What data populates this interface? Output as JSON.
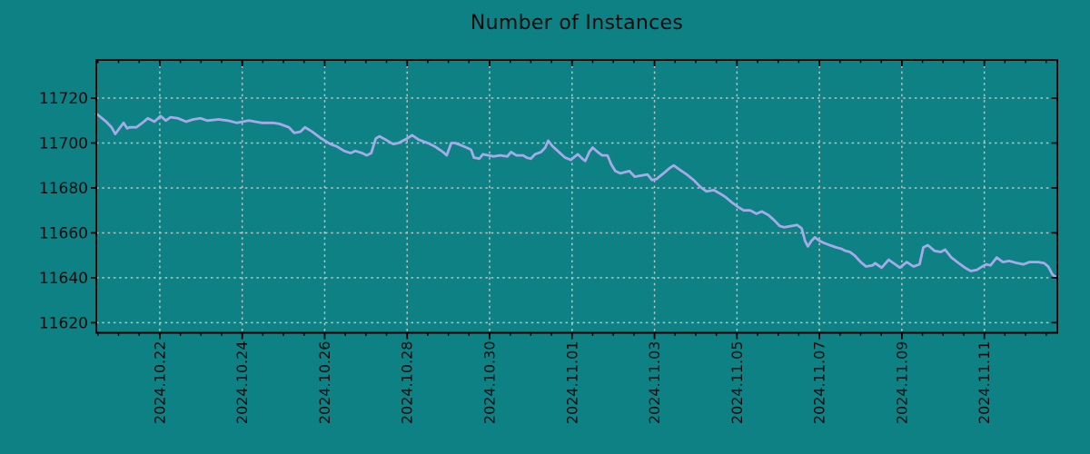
{
  "chart_data": {
    "type": "line",
    "title": "Number of Instances",
    "background_color": "#0e8185",
    "text_color": "#0b0b0b",
    "plot_border_color": "#000000",
    "grid": {
      "show": true,
      "style": "dashed",
      "color": "#bcc3c3"
    },
    "legend": "none",
    "x_axis": {
      "label": "",
      "unit": "days since 2024-10-20",
      "range_days": [
        0.46,
        23.77
      ],
      "minor_tick_interval_days": 0.5,
      "major_tick_interval_days": 2,
      "major_ticks": [
        {
          "t": 2,
          "label": "2024.10.22"
        },
        {
          "t": 4,
          "label": "2024.10.24"
        },
        {
          "t": 6,
          "label": "2024.10.26"
        },
        {
          "t": 8,
          "label": "2024.10.28"
        },
        {
          "t": 10,
          "label": "2024.10.30"
        },
        {
          "t": 12,
          "label": "2024.11.01"
        },
        {
          "t": 14,
          "label": "2024.11.03"
        },
        {
          "t": 16,
          "label": "2024.11.05"
        },
        {
          "t": 18,
          "label": "2024.11.07"
        },
        {
          "t": 20,
          "label": "2024.11.09"
        },
        {
          "t": 22,
          "label": "2024.11.11"
        }
      ]
    },
    "y_axis": {
      "label": "",
      "range": [
        11615.5,
        11737
      ],
      "tick_interval": 20,
      "major_ticks": [
        11620,
        11640,
        11660,
        11680,
        11700,
        11720
      ]
    },
    "series": [
      {
        "name": "instances",
        "color": "#a6aae8",
        "width": 2.8,
        "points": [
          [
            0.46,
            11713
          ],
          [
            0.5,
            11712.5
          ],
          [
            0.7,
            11709.5
          ],
          [
            0.83,
            11707
          ],
          [
            0.92,
            11704
          ],
          [
            1.02,
            11706.5
          ],
          [
            1.12,
            11709
          ],
          [
            1.21,
            11706.5
          ],
          [
            1.27,
            11707
          ],
          [
            1.43,
            11707
          ],
          [
            1.58,
            11709
          ],
          [
            1.71,
            11711
          ],
          [
            1.87,
            11709.5
          ],
          [
            2.02,
            11712
          ],
          [
            2.15,
            11710
          ],
          [
            2.26,
            11711.5
          ],
          [
            2.44,
            11711
          ],
          [
            2.64,
            11709.5
          ],
          [
            2.81,
            11710.5
          ],
          [
            2.99,
            11711
          ],
          [
            3.15,
            11710
          ],
          [
            3.43,
            11710.5
          ],
          [
            3.65,
            11710
          ],
          [
            3.87,
            11709
          ],
          [
            4.16,
            11710
          ],
          [
            4.47,
            11709
          ],
          [
            4.75,
            11709
          ],
          [
            4.91,
            11708.5
          ],
          [
            5.13,
            11707
          ],
          [
            5.26,
            11704.5
          ],
          [
            5.41,
            11705
          ],
          [
            5.52,
            11707
          ],
          [
            5.7,
            11705
          ],
          [
            5.92,
            11702
          ],
          [
            6.14,
            11699.5
          ],
          [
            6.29,
            11698.5
          ],
          [
            6.47,
            11696.5
          ],
          [
            6.63,
            11695.5
          ],
          [
            6.74,
            11696.5
          ],
          [
            6.91,
            11695.5
          ],
          [
            7.02,
            11694.5
          ],
          [
            7.13,
            11695.5
          ],
          [
            7.24,
            11702
          ],
          [
            7.33,
            11703
          ],
          [
            7.48,
            11701.5
          ],
          [
            7.66,
            11699.5
          ],
          [
            7.79,
            11700
          ],
          [
            7.95,
            11701.5
          ],
          [
            8.12,
            11703.5
          ],
          [
            8.28,
            11701.5
          ],
          [
            8.5,
            11700
          ],
          [
            8.67,
            11698.5
          ],
          [
            8.87,
            11696
          ],
          [
            8.96,
            11694.5
          ],
          [
            9.07,
            11700
          ],
          [
            9.16,
            11700
          ],
          [
            9.31,
            11699
          ],
          [
            9.44,
            11698
          ],
          [
            9.55,
            11697
          ],
          [
            9.62,
            11693.5
          ],
          [
            9.75,
            11693
          ],
          [
            9.84,
            11695
          ],
          [
            9.97,
            11694.5
          ],
          [
            10.1,
            11694
          ],
          [
            10.26,
            11694.5
          ],
          [
            10.43,
            11694
          ],
          [
            10.52,
            11696
          ],
          [
            10.65,
            11694.5
          ],
          [
            10.81,
            11694.5
          ],
          [
            10.9,
            11693.5
          ],
          [
            11.0,
            11693
          ],
          [
            11.1,
            11695
          ],
          [
            11.25,
            11696
          ],
          [
            11.35,
            11698
          ],
          [
            11.42,
            11701
          ],
          [
            11.53,
            11698.5
          ],
          [
            11.68,
            11696
          ],
          [
            11.83,
            11693.5
          ],
          [
            11.97,
            11692.5
          ],
          [
            12.14,
            11695
          ],
          [
            12.25,
            11693
          ],
          [
            12.32,
            11692
          ],
          [
            12.42,
            11696
          ],
          [
            12.5,
            11698
          ],
          [
            12.62,
            11696
          ],
          [
            12.73,
            11694.5
          ],
          [
            12.86,
            11694.5
          ],
          [
            12.95,
            11690.5
          ],
          [
            13.05,
            11687.5
          ],
          [
            13.17,
            11686.5
          ],
          [
            13.39,
            11687.5
          ],
          [
            13.52,
            11685
          ],
          [
            13.67,
            11685.5
          ],
          [
            13.83,
            11686
          ],
          [
            13.94,
            11683.5
          ],
          [
            14.05,
            11684
          ],
          [
            14.22,
            11686.5
          ],
          [
            14.38,
            11689
          ],
          [
            14.47,
            11690
          ],
          [
            14.62,
            11688
          ],
          [
            14.78,
            11686
          ],
          [
            14.95,
            11683.5
          ],
          [
            15.11,
            11680.5
          ],
          [
            15.26,
            11678.5
          ],
          [
            15.44,
            11679
          ],
          [
            15.59,
            11677.5
          ],
          [
            15.72,
            11676
          ],
          [
            15.88,
            11673.5
          ],
          [
            16.03,
            11671.5
          ],
          [
            16.16,
            11670
          ],
          [
            16.32,
            11670
          ],
          [
            16.47,
            11668.5
          ],
          [
            16.6,
            11669.5
          ],
          [
            16.76,
            11668
          ],
          [
            16.91,
            11665.5
          ],
          [
            17.04,
            11663
          ],
          [
            17.15,
            11662.5
          ],
          [
            17.31,
            11663
          ],
          [
            17.46,
            11663.5
          ],
          [
            17.57,
            11662
          ],
          [
            17.65,
            11656.5
          ],
          [
            17.72,
            11654
          ],
          [
            17.81,
            11656.5
          ],
          [
            17.89,
            11658
          ],
          [
            18.0,
            11656.5
          ],
          [
            18.11,
            11655.5
          ],
          [
            18.25,
            11654.5
          ],
          [
            18.41,
            11653.5
          ],
          [
            18.52,
            11653
          ],
          [
            18.63,
            11652
          ],
          [
            18.74,
            11651.5
          ],
          [
            18.85,
            11650
          ],
          [
            19.0,
            11647
          ],
          [
            19.13,
            11645
          ],
          [
            19.29,
            11645.5
          ],
          [
            19.35,
            11646.5
          ],
          [
            19.51,
            11644.5
          ],
          [
            19.68,
            11648
          ],
          [
            19.84,
            11646
          ],
          [
            19.95,
            11644.5
          ],
          [
            20.12,
            11647
          ],
          [
            20.28,
            11645
          ],
          [
            20.43,
            11646
          ],
          [
            20.52,
            11653.5
          ],
          [
            20.63,
            11654.5
          ],
          [
            20.79,
            11652
          ],
          [
            20.94,
            11651.5
          ],
          [
            21.05,
            11652.5
          ],
          [
            21.2,
            11649
          ],
          [
            21.38,
            11646.5
          ],
          [
            21.53,
            11644.5
          ],
          [
            21.67,
            11643
          ],
          [
            21.82,
            11643.5
          ],
          [
            21.95,
            11645
          ],
          [
            22.05,
            11646
          ],
          [
            22.15,
            11645.5
          ],
          [
            22.3,
            11649
          ],
          [
            22.45,
            11647
          ],
          [
            22.6,
            11647.5
          ],
          [
            22.8,
            11646.5
          ],
          [
            22.95,
            11646
          ],
          [
            23.1,
            11647
          ],
          [
            23.3,
            11647
          ],
          [
            23.45,
            11646.5
          ],
          [
            23.55,
            11645
          ],
          [
            23.65,
            11641.5
          ],
          [
            23.72,
            11640.5
          ],
          [
            23.77,
            11640.5
          ]
        ]
      }
    ]
  }
}
